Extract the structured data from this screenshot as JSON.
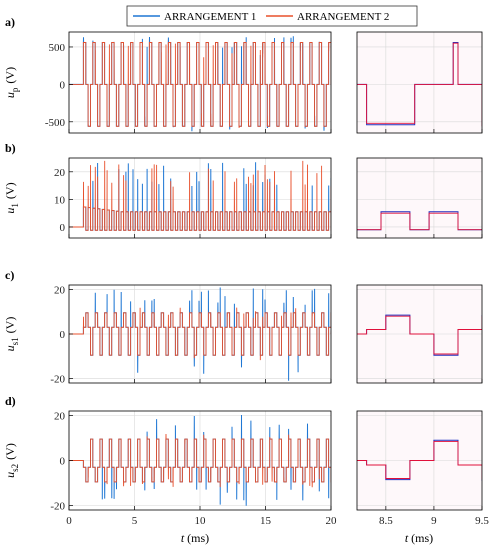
{
  "legend": {
    "items": [
      {
        "label": "ARRANGEMENT 1",
        "color": "#1f77d4"
      },
      {
        "label": "ARRANGEMENT 2",
        "color": "#e8502c"
      }
    ],
    "placement": "top-center"
  },
  "xlabel": {
    "italic": "t",
    "unit": " (ms)"
  },
  "chart_data": [
    {
      "type": "line",
      "panel": "a)",
      "view": "full",
      "ylabel": {
        "sym": "u",
        "sub": "p",
        "unit": "(V)"
      },
      "xlim": [
        0,
        20
      ],
      "ylim": [
        -650,
        700
      ],
      "xticks": [
        0,
        5,
        10,
        15,
        20
      ],
      "xtick_labels": [
        "",
        "",
        "",
        "",
        ""
      ],
      "yticks": [
        -500,
        0,
        500
      ],
      "ytick_labels": [
        "-500",
        "0",
        "500"
      ],
      "grid": true,
      "series": [
        {
          "name": "ARRANGEMENT 1",
          "color": "#1f77d4",
          "x": [
            0,
            1.1,
            1.15,
            1.45,
            1.5,
            1.8,
            1.85,
            2.15,
            2.2,
            20
          ],
          "y": [
            0,
            0,
            560,
            560,
            0,
            0,
            -560,
            -560,
            0,
            0
          ],
          "pattern": "square wave ±560 V, period ~0.7 ms, overshoot spikes to ~±640 V"
        },
        {
          "name": "ARRANGEMENT 2",
          "color": "#e8502c",
          "x": [
            0,
            1.1,
            1.15,
            1.45,
            1.5,
            1.8,
            1.85,
            2.15,
            2.2,
            20
          ],
          "y": [
            0,
            0,
            560,
            560,
            0,
            0,
            -560,
            -560,
            0,
            0
          ],
          "pattern": "square wave ±560 V, period ~0.7 ms"
        }
      ]
    },
    {
      "type": "line",
      "panel": "a)",
      "view": "zoom",
      "xlim": [
        8.2,
        9.5
      ],
      "ylim": [
        -650,
        700
      ],
      "xticks": [
        8.5,
        9,
        9.5
      ],
      "xtick_labels": [
        "",
        "",
        ""
      ],
      "grid": true,
      "series": [
        {
          "name": "ARRANGEMENT 1",
          "color": "#2030c0",
          "x": [
            8.2,
            8.3,
            8.75,
            8.8,
            9.2,
            9.25,
            9.5
          ],
          "y": [
            0,
            -540,
            -540,
            0,
            560,
            0,
            -560
          ]
        },
        {
          "name": "ARRANGEMENT 2",
          "color": "#e0103a",
          "x": [
            8.2,
            8.3,
            8.75,
            8.8,
            9.2,
            9.25,
            9.5
          ],
          "y": [
            0,
            -520,
            -520,
            0,
            550,
            0,
            -560
          ]
        }
      ]
    },
    {
      "type": "line",
      "panel": "b)",
      "view": "full",
      "ylabel": {
        "sym": "u",
        "sub": "1",
        "unit": "(V)"
      },
      "xlim": [
        0,
        20
      ],
      "ylim": [
        -4,
        25
      ],
      "xticks": [
        0,
        5,
        10,
        15,
        20
      ],
      "xtick_labels": [
        "",
        "",
        "",
        "",
        ""
      ],
      "yticks": [
        0,
        10,
        20
      ],
      "ytick_labels": [
        "0",
        "10",
        "20"
      ],
      "grid": true,
      "series": [
        {
          "name": "ARRANGEMENT 1",
          "color": "#1f77d4",
          "x": [
            0,
            1.1,
            1.15,
            1.45,
            1.8,
            20
          ],
          "y": [
            0,
            0,
            7,
            5,
            -1,
            -1
          ],
          "pattern": "switching between ~5.5 V and ~-1.5 V with spikes up to ~24 V"
        },
        {
          "name": "ARRANGEMENT 2",
          "color": "#e8502c",
          "x": [
            0,
            1.1,
            1.15,
            1.45,
            1.8,
            20
          ],
          "y": [
            0,
            0,
            7,
            5,
            -1,
            -1
          ],
          "pattern": "switching between ~5.5 V and ~-1.5 V with spikes up to ~24 V"
        }
      ]
    },
    {
      "type": "line",
      "panel": "b)",
      "view": "zoom",
      "xlim": [
        8.2,
        9.5
      ],
      "ylim": [
        -4,
        25
      ],
      "xticks": [
        8.5,
        9,
        9.5
      ],
      "xtick_labels": [
        "",
        "",
        ""
      ],
      "grid": true,
      "series": [
        {
          "name": "ARRANGEMENT 1",
          "color": "#2030c0",
          "x": [
            8.2,
            8.3,
            8.45,
            8.75,
            8.95,
            9.25,
            9.5
          ],
          "y": [
            -1,
            -1,
            5.5,
            -1,
            5.5,
            -1,
            -1
          ]
        },
        {
          "name": "ARRANGEMENT 2",
          "color": "#e0103a",
          "x": [
            8.2,
            8.3,
            8.45,
            8.75,
            8.95,
            9.25,
            9.5
          ],
          "y": [
            -1,
            -1,
            5,
            -1,
            5,
            -1,
            -1
          ]
        }
      ]
    },
    {
      "type": "line",
      "panel": "c)",
      "view": "full",
      "ylabel": {
        "sym": "u",
        "sub": "s1",
        "unit": "(V)"
      },
      "xlim": [
        0,
        20
      ],
      "ylim": [
        -22,
        22
      ],
      "xticks": [
        0,
        5,
        10,
        15,
        20
      ],
      "xtick_labels": [
        "",
        "",
        "",
        "",
        ""
      ],
      "yticks": [
        -20,
        0,
        20
      ],
      "ytick_labels": [
        "-20",
        "0",
        "20"
      ],
      "grid": true,
      "series": [
        {
          "name": "ARRANGEMENT 1",
          "color": "#1f77d4",
          "x": [
            0,
            1.1,
            20
          ],
          "y": [
            0,
            0,
            0
          ],
          "pattern": "multi-level steps between about ±10 V with spikes to ~±20 V"
        },
        {
          "name": "ARRANGEMENT 2",
          "color": "#e8502c",
          "x": [
            0,
            1.1,
            20
          ],
          "y": [
            0,
            0,
            0
          ],
          "pattern": "multi-level steps between about ±10 V"
        }
      ]
    },
    {
      "type": "line",
      "panel": "c)",
      "view": "zoom",
      "xlim": [
        8.2,
        9.5
      ],
      "ylim": [
        -22,
        22
      ],
      "xticks": [
        8.5,
        9,
        9.5
      ],
      "xtick_labels": [
        "",
        "",
        ""
      ],
      "grid": true,
      "series": [
        {
          "name": "ARRANGEMENT 1",
          "color": "#2030c0",
          "x": [
            8.2,
            8.3,
            8.5,
            8.75,
            9.0,
            9.25,
            9.5
          ],
          "y": [
            0,
            2,
            8.5,
            0,
            -9.5,
            2,
            8.5
          ]
        },
        {
          "name": "ARRANGEMENT 2",
          "color": "#e0103a",
          "x": [
            8.2,
            8.3,
            8.5,
            8.75,
            9.0,
            9.25,
            9.5
          ],
          "y": [
            0,
            2,
            8,
            0,
            -9,
            2,
            8
          ]
        }
      ]
    },
    {
      "type": "line",
      "panel": "d)",
      "view": "full",
      "ylabel": {
        "sym": "u",
        "sub": "s2",
        "unit": "(V)"
      },
      "xlim": [
        0,
        20
      ],
      "ylim": [
        -22,
        22
      ],
      "xticks": [
        0,
        5,
        10,
        15,
        20
      ],
      "xtick_labels": [
        "0",
        "5",
        "10",
        "15",
        "20"
      ],
      "yticks": [
        -20,
        0,
        20
      ],
      "ytick_labels": [
        "-20",
        "0",
        "20"
      ],
      "grid": true,
      "series": [
        {
          "name": "ARRANGEMENT 1",
          "color": "#1f77d4",
          "x": [
            0,
            1.1,
            20
          ],
          "y": [
            0,
            0,
            0
          ],
          "pattern": "multi-level steps between about ±10 V with spikes to ~±20 V"
        },
        {
          "name": "ARRANGEMENT 2",
          "color": "#e8502c",
          "x": [
            0,
            1.1,
            20
          ],
          "y": [
            0,
            0,
            0
          ],
          "pattern": "multi-level steps between about ±10 V"
        }
      ]
    },
    {
      "type": "line",
      "panel": "d)",
      "view": "zoom",
      "xlim": [
        8.2,
        9.5
      ],
      "ylim": [
        -22,
        22
      ],
      "xticks": [
        8.5,
        9,
        9.5
      ],
      "xtick_labels": [
        "8.5",
        "9",
        "9.5"
      ],
      "grid": true,
      "series": [
        {
          "name": "ARRANGEMENT 1",
          "color": "#2030c0",
          "x": [
            8.2,
            8.3,
            8.5,
            8.75,
            9.0,
            9.25,
            9.5
          ],
          "y": [
            0,
            -2,
            -8.5,
            0,
            9,
            -2,
            -9
          ]
        },
        {
          "name": "ARRANGEMENT 2",
          "color": "#e0103a",
          "x": [
            8.2,
            8.3,
            8.5,
            8.75,
            9.0,
            9.25,
            9.5
          ],
          "y": [
            0,
            -2,
            -8,
            0,
            8.5,
            -2,
            -8.5
          ]
        }
      ]
    }
  ]
}
